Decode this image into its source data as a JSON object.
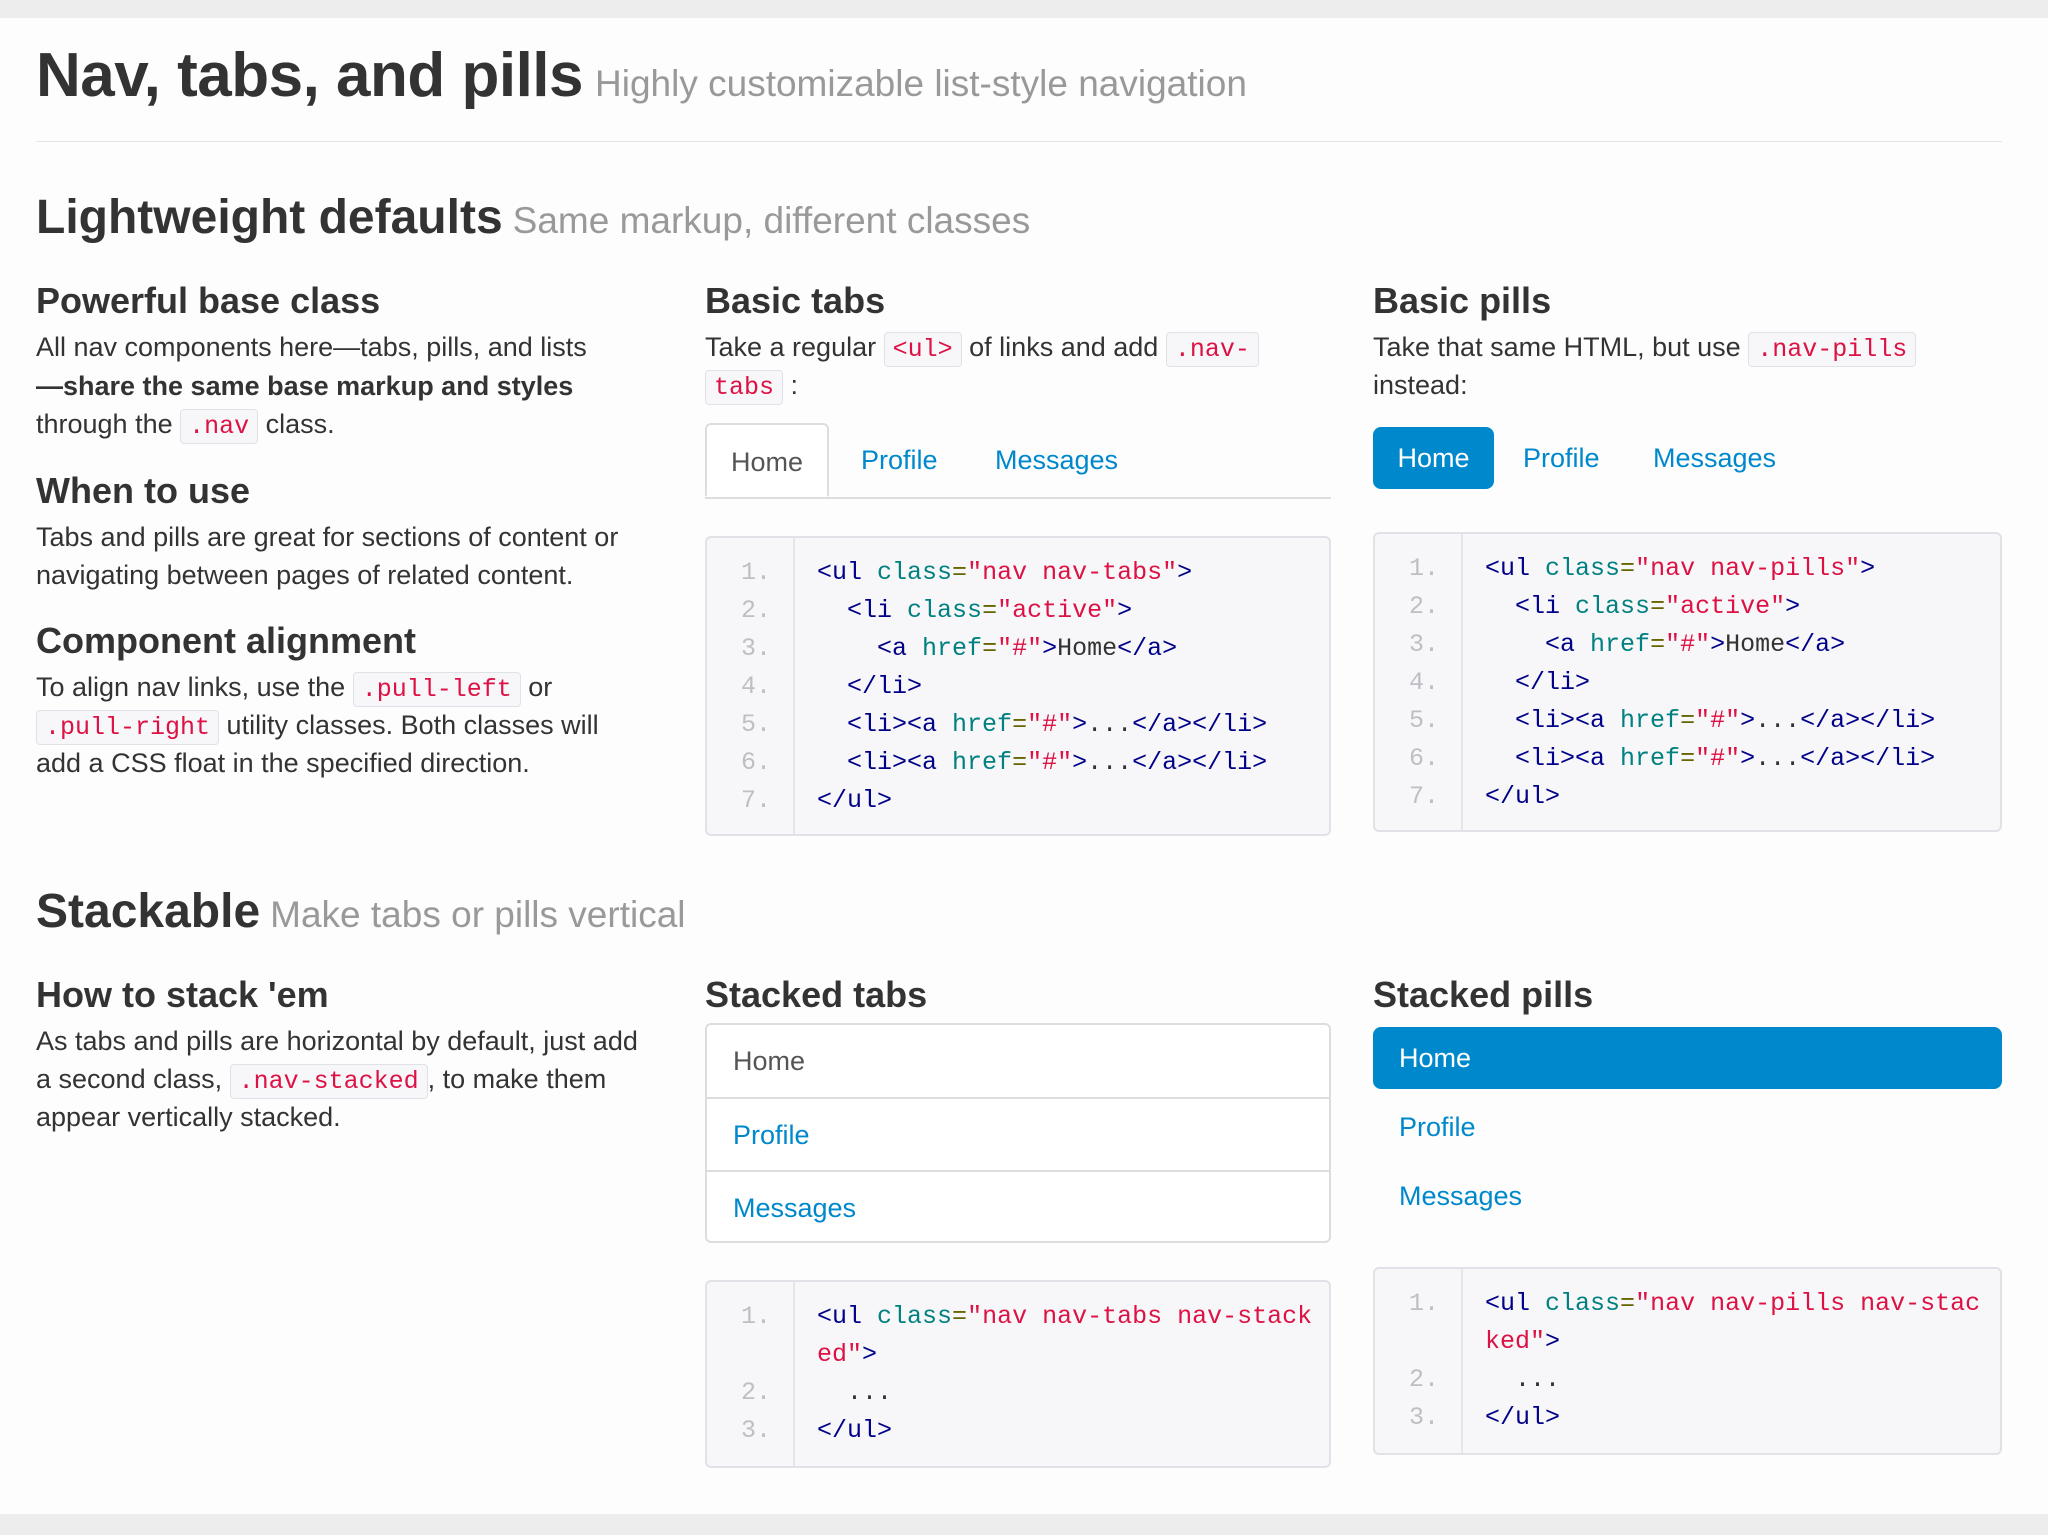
{
  "header": {
    "title": "Nav, tabs, and pills",
    "subtitle": "Highly customizable list-style navigation"
  },
  "lightweight": {
    "title": "Lightweight defaults",
    "subtitle": "Same markup, different classes",
    "base_class": {
      "heading": "Powerful base class",
      "line1": "All nav components here—tabs, pills, and lists",
      "line2_bold": "—share the same base markup and styles",
      "line3_pre": "through the",
      "line3_code": ".nav",
      "line3_post": "class."
    },
    "when": {
      "heading": "When to use",
      "line1": "Tabs and pills are great for sections of content or",
      "line2": "navigating between pages of related content."
    },
    "alignment": {
      "heading": "Component alignment",
      "line1_pre": "To align nav links, use the",
      "line1_code": ".pull-left",
      "line1_post": "or",
      "line2_code": ".pull-right",
      "line2_post": "utility classes. Both classes will",
      "line3": "add a CSS float in the specified direction."
    },
    "basic_tabs": {
      "heading": "Basic tabs",
      "line1_pre": "Take a regular",
      "line1_code1": "<ul>",
      "line1_mid": "of links and add",
      "line1_code2": ".nav-",
      "line2_code": "tabs",
      "line2_post": ":",
      "tabs": [
        "Home",
        "Profile",
        "Messages"
      ],
      "code_line_numbers": [
        "1.",
        "2.",
        "3.",
        "4.",
        "5.",
        "6.",
        "7."
      ]
    },
    "basic_pills": {
      "heading": "Basic pills",
      "line1_pre": "Take that same HTML, but use",
      "line1_code": ".nav-pills",
      "line2": "instead:",
      "pills": [
        "Home",
        "Profile",
        "Messages"
      ],
      "code_line_numbers": [
        "1.",
        "2.",
        "3.",
        "4.",
        "5.",
        "6.",
        "7."
      ]
    }
  },
  "stackable": {
    "title": "Stackable",
    "subtitle": "Make tabs or pills vertical",
    "how": {
      "heading": "How to stack 'em",
      "line1": "As tabs and pills are horizontal by default, just add",
      "line2_pre": "a second class,",
      "line2_code": ".nav-stacked",
      "line2_post": ", to make them",
      "line3": "appear vertically stacked."
    },
    "stacked_tabs": {
      "heading": "Stacked tabs",
      "items": [
        "Home",
        "Profile",
        "Messages"
      ],
      "code_line_numbers": [
        "1.",
        "2.",
        "3."
      ]
    },
    "stacked_pills": {
      "heading": "Stacked pills",
      "items": [
        "Home",
        "Profile",
        "Messages"
      ],
      "code_line_numbers": [
        "1.",
        "2.",
        "3."
      ]
    }
  },
  "colors": {
    "link": "#0088cc",
    "active_pill": "#0088cc",
    "code_red": "#dd1144"
  }
}
